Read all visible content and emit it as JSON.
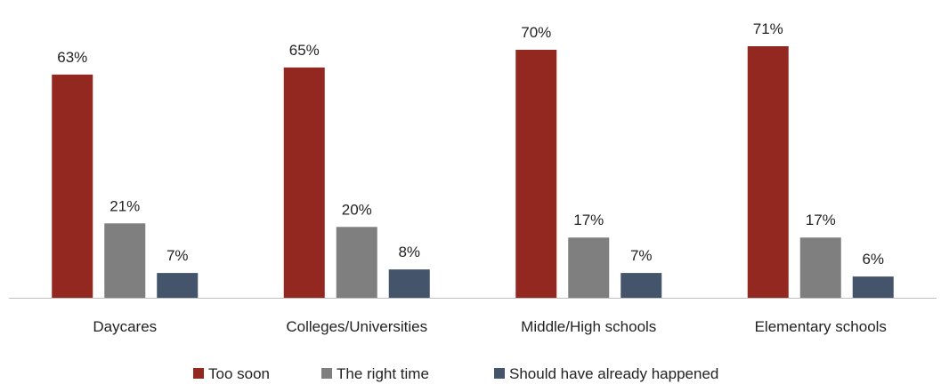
{
  "chart_data": {
    "type": "bar",
    "categories": [
      "Daycares",
      "Colleges/Universities",
      "Middle/High schools",
      "Elementary schools"
    ],
    "series": [
      {
        "name": "Too soon",
        "values": [
          63,
          65,
          70,
          71
        ],
        "color": "#922820"
      },
      {
        "name": "The right time",
        "values": [
          21,
          20,
          17,
          17
        ],
        "color": "#7f7f7f"
      },
      {
        "name": "Should have already happened",
        "values": [
          7,
          8,
          7,
          6
        ],
        "color": "#44546a"
      }
    ],
    "value_suffix": "%",
    "ylim": [
      0,
      80
    ],
    "grid": false,
    "legend": "bottom",
    "axis_color": "#bfbfbf"
  }
}
